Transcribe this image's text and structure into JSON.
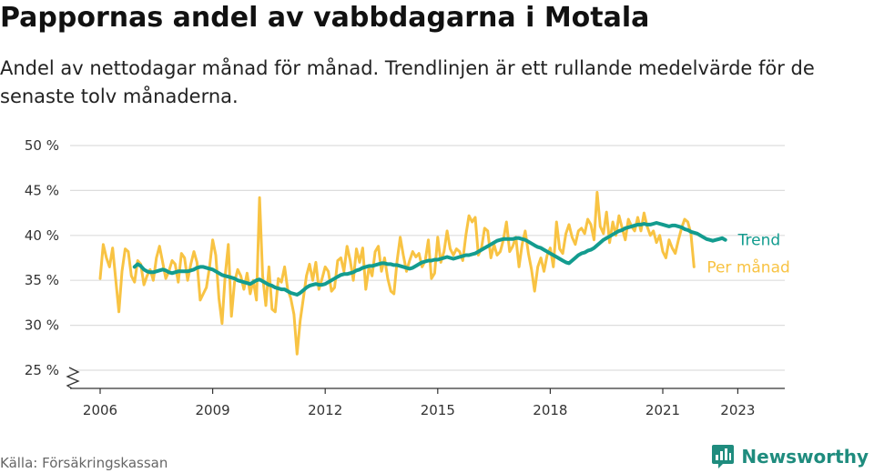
{
  "title": "Pappornas andel av vabbdagarna i Motala",
  "subtitle": "Andel av nettodagar månad för månad. Trendlinjen är ett rullande medelvärde för de senaste tolv månaderna.",
  "source": "Källa: Försäkringskassan",
  "brand": "Newsworthy",
  "colors": {
    "trend": "#139c8f",
    "monthly": "#f8c343",
    "grid": "#dddddd",
    "axis": "#333333",
    "brand": "#1f8c7e"
  },
  "icons": {
    "axis_break": "axis-break-icon",
    "brand_logo": "bar-chart-speech-bubble-icon"
  },
  "chart_data": {
    "type": "line",
    "x_unit": "month",
    "y_unit": "percent",
    "ylim": [
      25,
      50
    ],
    "y_ticks": [
      25,
      30,
      35,
      40,
      45,
      50
    ],
    "y_tick_labels": [
      "25 %",
      "30 %",
      "35 %",
      "40 %",
      "45 %",
      "50 %"
    ],
    "x_ticks": [
      2006,
      2009,
      2012,
      2015,
      2018,
      2021,
      2023
    ],
    "x_tick_labels": [
      "2006",
      "2009",
      "2012",
      "2015",
      "2018",
      "2021",
      "2023"
    ],
    "grid": true,
    "axis_break": true,
    "legend": "right-end labels",
    "series": [
      {
        "name": "Per månad",
        "start": "2006-01",
        "values": [
          35.2,
          39.0,
          37.5,
          36.5,
          38.6,
          35.0,
          31.5,
          36.0,
          38.5,
          38.2,
          35.5,
          34.8,
          37.2,
          36.8,
          34.5,
          35.5,
          36.2,
          35.0,
          37.5,
          38.8,
          37.0,
          35.2,
          36.0,
          37.2,
          36.8,
          34.8,
          38.0,
          37.5,
          35.0,
          36.8,
          38.2,
          37.0,
          32.8,
          33.5,
          34.2,
          36.5,
          39.5,
          37.8,
          33.0,
          30.2,
          35.5,
          39.0,
          31.0,
          34.8,
          36.2,
          35.5,
          34.0,
          35.8,
          33.5,
          35.0,
          32.8,
          44.2,
          35.5,
          32.2,
          36.5,
          31.8,
          31.5,
          35.2,
          34.8,
          36.5,
          34.0,
          33.0,
          31.2,
          26.8,
          30.5,
          33.0,
          35.5,
          36.8,
          35.0,
          37.0,
          34.0,
          35.2,
          36.5,
          36.0,
          33.8,
          34.2,
          37.2,
          37.5,
          36.0,
          38.8,
          37.2,
          35.0,
          38.5,
          37.0,
          38.6,
          34.0,
          36.5,
          35.5,
          38.2,
          38.8,
          36.0,
          37.5,
          35.2,
          33.8,
          33.5,
          37.2,
          39.8,
          37.8,
          36.0,
          37.2,
          38.2,
          37.6,
          38.0,
          36.5,
          37.2,
          39.5,
          35.2,
          35.8,
          39.8,
          37.0,
          38.2,
          40.5,
          38.5,
          37.8,
          38.5,
          38.2,
          37.2,
          40.0,
          42.2,
          41.5,
          42.0,
          37.8,
          38.6,
          40.8,
          40.5,
          37.5,
          39.0,
          37.8,
          38.2,
          39.5,
          41.5,
          38.2,
          38.8,
          39.8,
          36.5,
          39.0,
          40.5,
          38.0,
          36.2,
          33.8,
          36.5,
          37.5,
          36.0,
          37.8,
          38.6,
          36.5,
          41.5,
          38.5,
          38.0,
          40.2,
          41.2,
          39.8,
          39.0,
          40.5,
          40.8,
          40.2,
          41.8,
          41.2,
          39.5,
          44.8,
          41.0,
          40.2,
          42.6,
          39.2,
          41.5,
          40.0,
          42.2,
          40.8,
          39.5,
          41.8,
          41.0,
          40.5,
          42.0,
          40.5,
          42.5,
          41.0,
          40.0,
          40.5,
          39.2,
          40.0,
          38.2,
          37.5,
          39.5,
          38.6,
          38.0,
          39.5,
          40.8,
          41.8,
          41.5,
          40.2,
          36.5
        ]
      },
      {
        "name": "Trend",
        "start": "2006-12",
        "values": [
          36.5,
          36.8,
          36.6,
          36.2,
          36.0,
          35.9,
          35.9,
          36.0,
          36.1,
          36.2,
          36.1,
          35.9,
          35.8,
          35.9,
          36.0,
          36.0,
          36.0,
          36.0,
          36.1,
          36.2,
          36.4,
          36.5,
          36.5,
          36.4,
          36.3,
          36.2,
          36.0,
          35.8,
          35.6,
          35.5,
          35.4,
          35.3,
          35.2,
          35.0,
          34.9,
          34.8,
          34.7,
          34.6,
          34.8,
          35.0,
          35.1,
          34.9,
          34.7,
          34.5,
          34.4,
          34.2,
          34.1,
          34.0,
          34.0,
          33.8,
          33.6,
          33.5,
          33.4,
          33.6,
          33.9,
          34.2,
          34.4,
          34.5,
          34.6,
          34.5,
          34.5,
          34.6,
          34.8,
          35.0,
          35.2,
          35.4,
          35.6,
          35.7,
          35.7,
          35.8,
          35.9,
          36.1,
          36.2,
          36.4,
          36.5,
          36.6,
          36.6,
          36.7,
          36.8,
          36.9,
          36.9,
          36.8,
          36.8,
          36.7,
          36.7,
          36.6,
          36.5,
          36.4,
          36.3,
          36.4,
          36.6,
          36.8,
          37.0,
          37.1,
          37.2,
          37.2,
          37.3,
          37.3,
          37.4,
          37.5,
          37.6,
          37.5,
          37.4,
          37.5,
          37.6,
          37.7,
          37.8,
          37.8,
          37.9,
          38.0,
          38.2,
          38.4,
          38.6,
          38.8,
          39.0,
          39.2,
          39.4,
          39.5,
          39.6,
          39.6,
          39.6,
          39.6,
          39.7,
          39.7,
          39.6,
          39.5,
          39.3,
          39.1,
          38.9,
          38.7,
          38.6,
          38.4,
          38.2,
          38.0,
          37.8,
          37.6,
          37.4,
          37.2,
          37.0,
          36.9,
          37.2,
          37.5,
          37.8,
          38.0,
          38.1,
          38.3,
          38.4,
          38.6,
          38.9,
          39.2,
          39.5,
          39.7,
          39.9,
          40.1,
          40.3,
          40.5,
          40.6,
          40.8,
          40.9,
          41.0,
          41.1,
          41.2,
          41.2,
          41.3,
          41.2,
          41.2,
          41.3,
          41.4,
          41.3,
          41.2,
          41.1,
          41.0,
          41.1,
          41.1,
          41.0,
          40.9,
          40.7,
          40.6,
          40.4,
          40.3,
          40.2,
          40.0,
          39.8,
          39.6,
          39.5,
          39.4,
          39.5,
          39.6,
          39.7,
          39.5
        ]
      }
    ]
  }
}
